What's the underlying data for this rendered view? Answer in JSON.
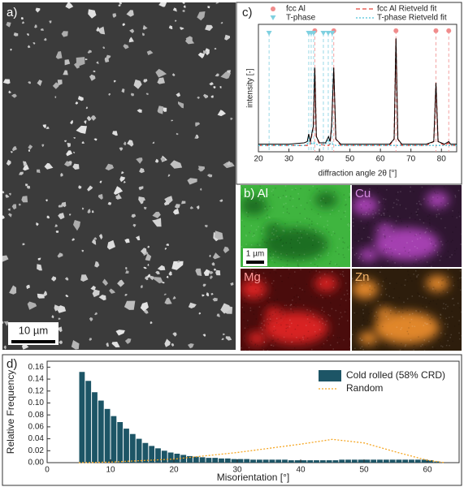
{
  "figure": {
    "panel_a": {
      "label": "a)",
      "scale_bar": "10 µm"
    },
    "panel_b": {
      "maps": [
        {
          "label": "b) Al"
        },
        {
          "label": "Cu"
        },
        {
          "label": "Mg"
        },
        {
          "label": "Zn"
        }
      ],
      "scale_bar": "1 µm"
    }
  },
  "chart_data": [
    {
      "type": "line",
      "panel_label": "c)",
      "x_label": "diffraction angle 2θ [°]",
      "y_label": "intensity [-]",
      "x": [
        20,
        30,
        35,
        36,
        36.5,
        37,
        38,
        38.5,
        39,
        40,
        42,
        43,
        43.5,
        44,
        44.7,
        45.4,
        47,
        55,
        63,
        64.5,
        65.1,
        65.7,
        67,
        75,
        77.5,
        78.2,
        78.9,
        81,
        82.4,
        83,
        85
      ],
      "xlim": [
        20,
        85
      ],
      "xticks": [
        20,
        30,
        40,
        50,
        60,
        70,
        80
      ],
      "ylim": [
        0,
        1
      ],
      "yticks": [],
      "legend": "top",
      "series": [
        {
          "name": "fcc Al",
          "type": "scatter",
          "marker": "circle",
          "color": "#f08c8c",
          "drop_lines": true,
          "x": [
            38.5,
            44.7,
            65.1,
            78.2,
            82.4
          ],
          "values": [
            0.95,
            0.95,
            0.95,
            0.95,
            0.95
          ]
        },
        {
          "name": "fcc Al Rietveld fit",
          "type": "line",
          "style": "dashed",
          "color": "#e8433a",
          "values": [
            0.05,
            0.05,
            0.05,
            0.05,
            0.06,
            0.06,
            0.2,
            0.66,
            0.12,
            0.06,
            0.05,
            0.05,
            0.06,
            0.2,
            0.66,
            0.1,
            0.05,
            0.05,
            0.05,
            0.1,
            0.89,
            0.1,
            0.05,
            0.05,
            0.08,
            0.54,
            0.08,
            0.05,
            0.07,
            0.05,
            0.05
          ]
        },
        {
          "name": "T-phase",
          "type": "scatter",
          "marker": "triangle",
          "color": "#7fd0e0",
          "drop_lines": true,
          "x": [
            23.5,
            36.5,
            37.3,
            38.1,
            41.3,
            42.9,
            44.2
          ],
          "values": [
            0.93,
            0.93,
            0.93,
            0.93,
            0.93,
            0.93,
            0.93
          ]
        },
        {
          "name": "T-phase Rietveld fit",
          "type": "line",
          "style": "dotted",
          "color": "#4fc3d9",
          "values": [
            0.05,
            0.05,
            0.05,
            0.06,
            0.11,
            0.07,
            0.06,
            0.07,
            0.06,
            0.05,
            0.06,
            0.1,
            0.06,
            0.06,
            0.06,
            0.05,
            0.05,
            0.05,
            0.05,
            0.05,
            0.05,
            0.05,
            0.05,
            0.05,
            0.05,
            0.05,
            0.05,
            0.05,
            0.05,
            0.05,
            0.05
          ]
        },
        {
          "type": "line",
          "style": "solid",
          "color": "#000000",
          "values": [
            0.06,
            0.06,
            0.07,
            0.08,
            0.14,
            0.08,
            0.2,
            0.66,
            0.12,
            0.07,
            0.07,
            0.12,
            0.08,
            0.2,
            0.66,
            0.1,
            0.06,
            0.06,
            0.06,
            0.1,
            0.89,
            0.1,
            0.06,
            0.06,
            0.08,
            0.54,
            0.08,
            0.06,
            0.08,
            0.06,
            0.06
          ]
        }
      ]
    },
    {
      "type": "histogram",
      "panel_label": "d)",
      "x_label": "Misorientation [°]",
      "y_label": "Relative Frequency",
      "bins": [
        5,
        6,
        7,
        8,
        9,
        10,
        11,
        12,
        13,
        14,
        15,
        16,
        17,
        18,
        19,
        20,
        21,
        22,
        23,
        24,
        25,
        26,
        27,
        28,
        29,
        30,
        31,
        32,
        33,
        34,
        35,
        36,
        37,
        38,
        39,
        40,
        41,
        42,
        43,
        44,
        45,
        46,
        47,
        48,
        49,
        50,
        51,
        52,
        53,
        54,
        55,
        56,
        57,
        58,
        59,
        60,
        61,
        62
      ],
      "xlim": [
        0,
        65
      ],
      "xticks": [
        0,
        10,
        20,
        30,
        40,
        50,
        60
      ],
      "ylim": [
        0,
        0.17
      ],
      "yticks": [
        {
          "value": 0,
          "label": "0.00"
        },
        0.02,
        0.04,
        0.06,
        0.08,
        {
          "value": 0.1,
          "label": "0.10"
        },
        0.12,
        0.14,
        0.16
      ],
      "legend": "upper right",
      "series": [
        {
          "name": "Cold rolled (58% CRD)",
          "type": "histogram",
          "color": "#1d5566",
          "values": [
            0.152,
            0.137,
            0.118,
            0.104,
            0.09,
            0.078,
            0.068,
            0.057,
            0.048,
            0.04,
            0.033,
            0.028,
            0.024,
            0.02,
            0.017,
            0.015,
            0.013,
            0.011,
            0.01,
            0.009,
            0.008,
            0.008,
            0.007,
            0.007,
            0.006,
            0.006,
            0.006,
            0.005,
            0.005,
            0.005,
            0.005,
            0.005,
            0.005,
            0.004,
            0.004,
            0.004,
            0.004,
            0.004,
            0.004,
            0.004,
            0.004,
            0.005,
            0.005,
            0.005,
            0.005,
            0.005,
            0.005,
            0.005,
            0.005,
            0.005,
            0.005,
            0.005,
            0.005,
            0.005,
            0.005,
            0.004,
            0.002
          ]
        },
        {
          "name": "Random",
          "type": "line",
          "style": "dotted",
          "color": "#f5a623",
          "x": [
            5,
            10,
            20,
            30,
            40,
            45,
            50,
            55,
            60,
            62.8
          ],
          "values": [
            0,
            0.001,
            0.006,
            0.017,
            0.031,
            0.039,
            0.033,
            0.018,
            0.004,
            0
          ]
        }
      ]
    }
  ]
}
